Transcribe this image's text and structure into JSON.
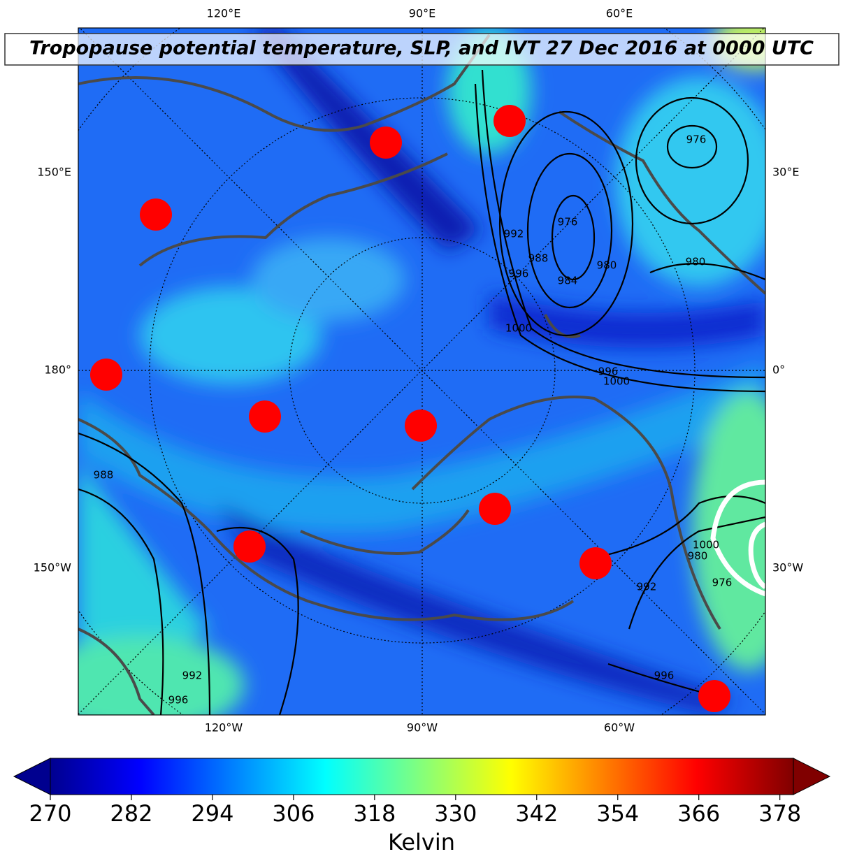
{
  "title": "Tropopause potential temperature, SLP, and IVT 27 Dec 2016 at 0000 UTC",
  "longitude_labels": {
    "top": [
      "120°E",
      "90°E",
      "60°E"
    ],
    "left": [
      "150°E",
      "180°",
      "150°W"
    ],
    "right": [
      "30°E",
      "0°",
      "30°W"
    ],
    "bottom": [
      "120°W",
      "90°W",
      "60°W"
    ]
  },
  "contour_labels": [
    "976",
    "992",
    "988",
    "976",
    "984",
    "996",
    "1000",
    "980",
    "980",
    "996",
    "1000",
    "988",
    "1000",
    "980",
    "976",
    "992",
    "996",
    "992",
    "996"
  ],
  "colorbar": {
    "label": "Kelvin",
    "range": [
      270,
      380
    ],
    "ticks": [
      270,
      282,
      294,
      306,
      318,
      330,
      342,
      354,
      366,
      378
    ]
  }
}
